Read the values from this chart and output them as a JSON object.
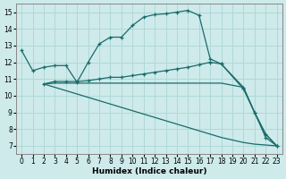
{
  "xlabel": "Humidex (Indice chaleur)",
  "xlim": [
    -0.5,
    23.5
  ],
  "ylim": [
    6.5,
    15.5
  ],
  "yticks": [
    7,
    8,
    9,
    10,
    11,
    12,
    13,
    14,
    15
  ],
  "xticks": [
    0,
    1,
    2,
    3,
    4,
    5,
    6,
    7,
    8,
    9,
    10,
    11,
    12,
    13,
    14,
    15,
    16,
    17,
    18,
    19,
    20,
    21,
    22,
    23
  ],
  "bg_color": "#ceeaea",
  "grid_color": "#b0d8d8",
  "line_color": "#1a6b6b",
  "line1_x": [
    0,
    1,
    2,
    3,
    4,
    5,
    6,
    7,
    8,
    9,
    10,
    11,
    12,
    13,
    14,
    15,
    16,
    17,
    18,
    20,
    21,
    22,
    23
  ],
  "line1_y": [
    12.7,
    11.5,
    11.7,
    11.8,
    11.8,
    10.8,
    12.0,
    13.1,
    13.5,
    13.5,
    14.2,
    14.7,
    14.85,
    14.9,
    15.0,
    15.1,
    14.8,
    12.2,
    11.9,
    10.5,
    9.0,
    7.5,
    7.0
  ],
  "line2_x": [
    2,
    3,
    4,
    5,
    6,
    7,
    8,
    9,
    10,
    11,
    12,
    13,
    14,
    15,
    16,
    17,
    18,
    20,
    21,
    22,
    23
  ],
  "line2_y": [
    10.7,
    10.85,
    10.85,
    10.85,
    10.9,
    11.0,
    11.1,
    11.1,
    11.2,
    11.3,
    11.4,
    11.5,
    11.6,
    11.7,
    11.85,
    12.0,
    11.9,
    10.4,
    9.0,
    7.7,
    7.0
  ],
  "line3_x": [
    2,
    3,
    4,
    5,
    6,
    7,
    8,
    9,
    10,
    11,
    12,
    13,
    14,
    15,
    16,
    17,
    18,
    20,
    21,
    22,
    23
  ],
  "line3_y": [
    10.7,
    10.75,
    10.75,
    10.75,
    10.75,
    10.75,
    10.75,
    10.75,
    10.75,
    10.75,
    10.75,
    10.75,
    10.75,
    10.75,
    10.75,
    10.75,
    10.75,
    10.5,
    9.0,
    7.7,
    7.0
  ],
  "line4_x": [
    2,
    3,
    4,
    5,
    6,
    7,
    8,
    9,
    10,
    11,
    12,
    13,
    14,
    15,
    16,
    17,
    18,
    19,
    20,
    21,
    22,
    23
  ],
  "line4_y": [
    10.7,
    10.5,
    10.3,
    10.1,
    9.9,
    9.7,
    9.5,
    9.3,
    9.1,
    8.9,
    8.7,
    8.5,
    8.3,
    8.1,
    7.9,
    7.7,
    7.5,
    7.35,
    7.2,
    7.1,
    7.05,
    7.0
  ]
}
